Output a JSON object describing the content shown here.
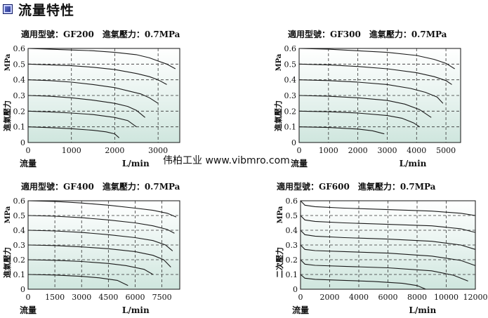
{
  "header": {
    "title": "流量特性"
  },
  "watermark": "伟柏工业 www.vibmro.com",
  "chart_data": [
    {
      "type": "line",
      "title": "適用型號：GF200　進氣壓力：0.7MPa",
      "xlabel": "流量",
      "xunit": "L/min",
      "ylabel": "進氣壓力",
      "yunit": "MPa",
      "xlim": [
        0,
        3500
      ],
      "ylim": [
        0,
        0.6
      ],
      "xticks": [
        0,
        1000,
        2000,
        3000
      ],
      "yticks": [
        0,
        0.1,
        0.2,
        0.3,
        0.4,
        0.5,
        0.6
      ],
      "grid": true,
      "series": [
        {
          "x": [
            0,
            500,
            1000,
            1500,
            2000,
            2500,
            2800,
            3000,
            3200,
            3400
          ],
          "y": [
            0.6,
            0.595,
            0.59,
            0.585,
            0.575,
            0.56,
            0.54,
            0.52,
            0.5,
            0.47
          ]
        },
        {
          "x": [
            0,
            500,
            1000,
            1500,
            2000,
            2500,
            2800,
            3000,
            3200
          ],
          "y": [
            0.5,
            0.495,
            0.49,
            0.48,
            0.465,
            0.44,
            0.42,
            0.4,
            0.37
          ]
        },
        {
          "x": [
            0,
            500,
            1000,
            1500,
            2000,
            2300,
            2600,
            2800,
            3000
          ],
          "y": [
            0.4,
            0.395,
            0.385,
            0.37,
            0.35,
            0.33,
            0.31,
            0.285,
            0.25
          ]
        },
        {
          "x": [
            0,
            500,
            1000,
            1500,
            2000,
            2300,
            2500,
            2700
          ],
          "y": [
            0.3,
            0.295,
            0.285,
            0.27,
            0.25,
            0.23,
            0.205,
            0.16
          ]
        },
        {
          "x": [
            0,
            500,
            1000,
            1500,
            2000,
            2300,
            2500
          ],
          "y": [
            0.2,
            0.195,
            0.188,
            0.178,
            0.16,
            0.14,
            0.1
          ]
        },
        {
          "x": [
            0,
            500,
            1000,
            1500,
            1800,
            2000,
            2100
          ],
          "y": [
            0.1,
            0.095,
            0.088,
            0.078,
            0.068,
            0.055,
            0.03
          ]
        }
      ]
    },
    {
      "type": "line",
      "title": "適用型號：GF300　進氣壓力：0.7MPa",
      "xlabel": "流量",
      "xunit": "L/min",
      "ylabel": "進氣壓力",
      "yunit": "MPa",
      "xlim": [
        0,
        5500
      ],
      "ylim": [
        0,
        0.6
      ],
      "xticks": [
        0,
        1000,
        2000,
        3000,
        4000,
        5000
      ],
      "yticks": [
        0,
        0.1,
        0.2,
        0.3,
        0.4,
        0.5,
        0.6
      ],
      "grid": true,
      "series": [
        {
          "x": [
            0,
            1000,
            2000,
            3000,
            4000,
            4600,
            5000,
            5300
          ],
          "y": [
            0.6,
            0.595,
            0.585,
            0.575,
            0.555,
            0.53,
            0.505,
            0.47
          ]
        },
        {
          "x": [
            0,
            1000,
            2000,
            3000,
            4000,
            4600,
            5000,
            5200
          ],
          "y": [
            0.5,
            0.495,
            0.485,
            0.47,
            0.445,
            0.42,
            0.395,
            0.37
          ]
        },
        {
          "x": [
            0,
            1000,
            2000,
            3000,
            3800,
            4300,
            4700,
            4900
          ],
          "y": [
            0.4,
            0.395,
            0.385,
            0.37,
            0.345,
            0.32,
            0.29,
            0.25
          ]
        },
        {
          "x": [
            0,
            1000,
            2000,
            3000,
            3600,
            4100,
            4500
          ],
          "y": [
            0.3,
            0.295,
            0.285,
            0.268,
            0.245,
            0.21,
            0.16
          ]
        },
        {
          "x": [
            0,
            1000,
            2000,
            3000,
            3500,
            3900,
            4100
          ],
          "y": [
            0.2,
            0.196,
            0.188,
            0.172,
            0.155,
            0.125,
            0.1
          ]
        },
        {
          "x": [
            0,
            1000,
            2000,
            2500,
            2900
          ],
          "y": [
            0.1,
            0.096,
            0.086,
            0.075,
            0.055
          ]
        }
      ]
    },
    {
      "type": "line",
      "title": "適用型號：GF400　進氣壓力：0.7MPa",
      "xlabel": "流量",
      "xunit": "L/min",
      "ylabel": "進氣壓力",
      "yunit": "MPa",
      "xlim": [
        0,
        8500
      ],
      "ylim": [
        0,
        0.6
      ],
      "xticks": [
        0,
        1500,
        3000,
        4500,
        6000,
        7500
      ],
      "yticks": [
        0,
        0.1,
        0.2,
        0.3,
        0.4,
        0.5,
        0.6
      ],
      "grid": true,
      "series": [
        {
          "x": [
            0,
            1500,
            3000,
            4500,
            6000,
            7000,
            7800,
            8300
          ],
          "y": [
            0.6,
            0.595,
            0.585,
            0.57,
            0.55,
            0.535,
            0.515,
            0.49
          ]
        },
        {
          "x": [
            0,
            1500,
            3000,
            4500,
            6000,
            7000,
            7800,
            8200
          ],
          "y": [
            0.5,
            0.495,
            0.485,
            0.47,
            0.45,
            0.43,
            0.405,
            0.38
          ]
        },
        {
          "x": [
            0,
            1500,
            3000,
            4500,
            6000,
            7000,
            7700,
            8100
          ],
          "y": [
            0.4,
            0.395,
            0.385,
            0.37,
            0.35,
            0.33,
            0.3,
            0.26
          ]
        },
        {
          "x": [
            0,
            1500,
            3000,
            4500,
            6000,
            7000,
            7600,
            8000
          ],
          "y": [
            0.3,
            0.296,
            0.287,
            0.275,
            0.255,
            0.23,
            0.2,
            0.15
          ]
        },
        {
          "x": [
            0,
            1500,
            3000,
            4500,
            5500,
            6500,
            7000
          ],
          "y": [
            0.2,
            0.196,
            0.188,
            0.175,
            0.16,
            0.135,
            0.1
          ]
        },
        {
          "x": [
            0,
            1500,
            3000,
            4000,
            5000,
            5600
          ],
          "y": [
            0.1,
            0.096,
            0.087,
            0.077,
            0.06,
            0.025
          ]
        }
      ]
    },
    {
      "type": "line",
      "title": "適用型號：GF600　進氣壓力：0.7MPa",
      "xlabel": "流量",
      "xunit": "L/min",
      "ylabel": "二次壓力",
      "yunit": "MPa",
      "xlim": [
        0,
        12000
      ],
      "ylim": [
        0,
        0.6
      ],
      "xticks": [
        0,
        2000,
        4000,
        6000,
        8000,
        10000,
        12000
      ],
      "yticks": [
        0,
        0.1,
        0.2,
        0.3,
        0.4,
        0.5,
        0.6
      ],
      "grid": true,
      "series": [
        {
          "x": [
            0,
            300,
            1000,
            3000,
            6000,
            9000,
            11000,
            12000
          ],
          "y": [
            0.6,
            0.57,
            0.56,
            0.55,
            0.54,
            0.53,
            0.515,
            0.5
          ]
        },
        {
          "x": [
            0,
            300,
            1000,
            3000,
            6000,
            9000,
            11000,
            12000
          ],
          "y": [
            0.5,
            0.47,
            0.46,
            0.45,
            0.44,
            0.43,
            0.41,
            0.385
          ]
        },
        {
          "x": [
            0,
            300,
            1000,
            3000,
            6000,
            9000,
            11000,
            12000
          ],
          "y": [
            0.4,
            0.37,
            0.36,
            0.35,
            0.34,
            0.325,
            0.3,
            0.27
          ]
        },
        {
          "x": [
            0,
            300,
            1000,
            3000,
            6000,
            9000,
            11000,
            12000
          ],
          "y": [
            0.3,
            0.27,
            0.262,
            0.255,
            0.245,
            0.225,
            0.195,
            0.16
          ]
        },
        {
          "x": [
            0,
            300,
            1000,
            3000,
            6000,
            9000,
            10500,
            11500
          ],
          "y": [
            0.2,
            0.17,
            0.162,
            0.155,
            0.145,
            0.125,
            0.095,
            0.055
          ]
        },
        {
          "x": [
            0,
            300,
            1000,
            3000,
            5000,
            7000,
            8000,
            8600
          ],
          "y": [
            0.1,
            0.075,
            0.067,
            0.06,
            0.053,
            0.04,
            0.025,
            0.0
          ]
        }
      ]
    }
  ]
}
